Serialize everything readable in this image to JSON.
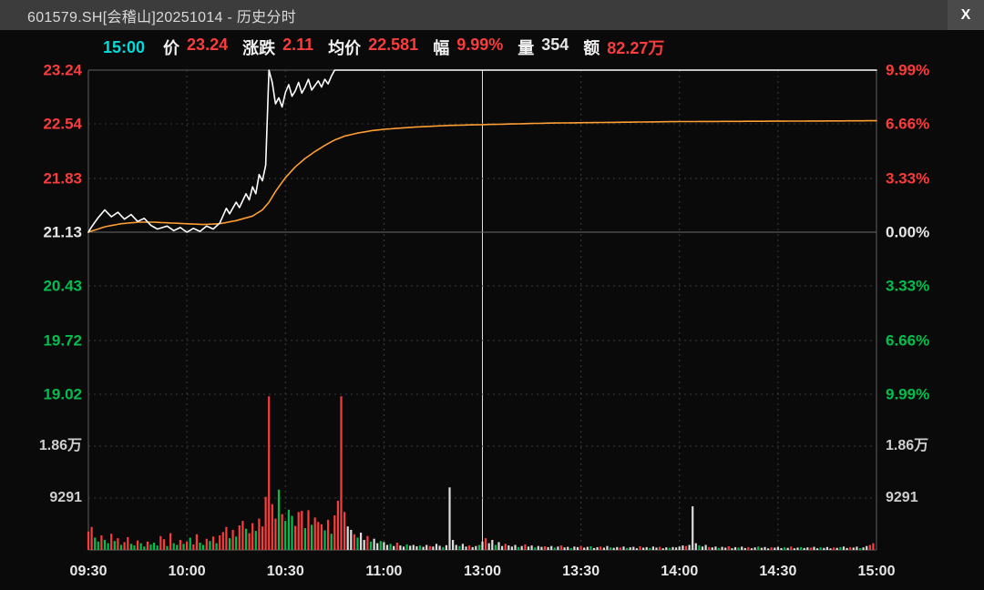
{
  "window": {
    "title": "601579.SH[会稽山]20251014 - 历史分时",
    "close_label": "X"
  },
  "info_bar": {
    "time": "15:00",
    "fields": [
      {
        "key": "price",
        "label": "价",
        "value": "23.24",
        "color": "red"
      },
      {
        "key": "change",
        "label": "涨跌",
        "value": "2.11",
        "color": "red"
      },
      {
        "key": "avg_price",
        "label": "均价",
        "value": "22.581",
        "color": "red"
      },
      {
        "key": "range_pct",
        "label": "幅",
        "value": "9.99%",
        "color": "red"
      },
      {
        "key": "volume",
        "label": "量",
        "value": "354",
        "color": "flat"
      },
      {
        "key": "amount",
        "label": "额",
        "value": "82.27万",
        "color": "red"
      }
    ]
  },
  "colors": {
    "red": "#fa3c3c",
    "green": "#00bf4e",
    "flat": "#e6e6e6",
    "cyan": "#00dcdc",
    "orange": "#ff9e33",
    "white": "#ffffff",
    "vol_white": "#dcdcdc",
    "grid": "#3a3a3a",
    "border": "#606060",
    "divider": "#e0e0e0"
  },
  "axes": {
    "left_price": [
      {
        "text": "23.24",
        "color": "red"
      },
      {
        "text": "22.54",
        "color": "red"
      },
      {
        "text": "21.83",
        "color": "red"
      },
      {
        "text": "21.13",
        "color": "flat"
      },
      {
        "text": "20.43",
        "color": "green"
      },
      {
        "text": "19.72",
        "color": "green"
      },
      {
        "text": "19.02",
        "color": "green"
      }
    ],
    "right_pct": [
      {
        "text": "9.99%",
        "color": "red"
      },
      {
        "text": "6.66%",
        "color": "red"
      },
      {
        "text": "3.33%",
        "color": "red"
      },
      {
        "text": "0.00%",
        "color": "flat"
      },
      {
        "text": "3.33%",
        "color": "green"
      },
      {
        "text": "6.66%",
        "color": "green"
      },
      {
        "text": "9.99%",
        "color": "green"
      }
    ],
    "volume_labels": [
      {
        "text": "1.86万",
        "value": 18582
      },
      {
        "text": "9291",
        "value": 9291
      }
    ],
    "time": [
      "09:30",
      "10:00",
      "10:30",
      "11:00",
      "13:00",
      "13:30",
      "14:00",
      "14:30",
      "15:00"
    ]
  },
  "chart_data": {
    "type": "line",
    "title": "601579.SH[会稽山]20251014 - 历史分时",
    "minutes_total": 240,
    "prev_close": 21.13,
    "limit_up": 23.24,
    "limit_down": 19.02,
    "price_ticks": [
      23.24,
      22.54,
      21.83,
      21.13,
      20.43,
      19.72,
      19.02
    ],
    "pct_ticks": [
      9.99,
      6.66,
      3.33,
      0.0,
      -3.33,
      -6.66,
      -9.99
    ],
    "x_labels": [
      "09:30",
      "10:00",
      "10:30",
      "11:00",
      "13:00",
      "13:30",
      "14:00",
      "14:30",
      "15:00"
    ],
    "summary": {
      "last_price": 23.24,
      "change": 2.11,
      "avg_price": 22.581,
      "change_pct": "9.99%",
      "volume": "354",
      "amount": "82.27万",
      "time": "15:00"
    },
    "series": [
      {
        "name": "price",
        "color_key": "white",
        "anchors": [
          [
            0,
            21.13
          ],
          [
            1,
            21.2
          ],
          [
            3,
            21.32
          ],
          [
            5,
            21.42
          ],
          [
            7,
            21.33
          ],
          [
            9,
            21.39
          ],
          [
            11,
            21.3
          ],
          [
            13,
            21.36
          ],
          [
            15,
            21.27
          ],
          [
            17,
            21.31
          ],
          [
            19,
            21.22
          ],
          [
            21,
            21.17
          ],
          [
            24,
            21.21
          ],
          [
            26,
            21.15
          ],
          [
            28,
            21.19
          ],
          [
            30,
            21.13
          ],
          [
            32,
            21.18
          ],
          [
            34,
            21.14
          ],
          [
            36,
            21.21
          ],
          [
            38,
            21.17
          ],
          [
            40,
            21.25
          ],
          [
            42,
            21.44
          ],
          [
            43,
            21.37
          ],
          [
            45,
            21.52
          ],
          [
            46,
            21.45
          ],
          [
            48,
            21.63
          ],
          [
            49,
            21.55
          ],
          [
            50,
            21.72
          ],
          [
            51,
            21.63
          ],
          [
            52,
            21.88
          ],
          [
            53,
            21.8
          ],
          [
            54,
            22.0
          ],
          [
            55,
            23.24
          ],
          [
            56,
            23.08
          ],
          [
            57,
            22.8
          ],
          [
            58,
            22.88
          ],
          [
            59,
            22.76
          ],
          [
            60,
            22.95
          ],
          [
            61,
            23.05
          ],
          [
            62,
            22.9
          ],
          [
            63,
            22.97
          ],
          [
            64,
            23.08
          ],
          [
            65,
            22.94
          ],
          [
            66,
            23.02
          ],
          [
            67,
            23.12
          ],
          [
            68,
            22.98
          ],
          [
            69,
            23.04
          ],
          [
            70,
            23.1
          ],
          [
            71,
            23.02
          ],
          [
            72,
            23.12
          ],
          [
            73,
            23.06
          ],
          [
            74,
            23.16
          ],
          [
            75,
            23.24
          ],
          [
            240,
            23.24
          ]
        ]
      },
      {
        "name": "avg_price",
        "color_key": "orange",
        "anchors": [
          [
            0,
            21.13
          ],
          [
            5,
            21.2
          ],
          [
            10,
            21.24
          ],
          [
            15,
            21.26
          ],
          [
            20,
            21.26
          ],
          [
            25,
            21.25
          ],
          [
            30,
            21.24
          ],
          [
            35,
            21.23
          ],
          [
            40,
            21.24
          ],
          [
            45,
            21.28
          ],
          [
            50,
            21.34
          ],
          [
            53,
            21.42
          ],
          [
            55,
            21.52
          ],
          [
            57,
            21.66
          ],
          [
            60,
            21.84
          ],
          [
            63,
            21.98
          ],
          [
            66,
            22.09
          ],
          [
            69,
            22.18
          ],
          [
            72,
            22.26
          ],
          [
            75,
            22.33
          ],
          [
            78,
            22.38
          ],
          [
            82,
            22.42
          ],
          [
            86,
            22.45
          ],
          [
            90,
            22.47
          ],
          [
            100,
            22.5
          ],
          [
            110,
            22.52
          ],
          [
            120,
            22.53
          ],
          [
            140,
            22.55
          ],
          [
            160,
            22.56
          ],
          [
            180,
            22.57
          ],
          [
            210,
            22.575
          ],
          [
            240,
            22.581
          ]
        ]
      }
    ],
    "volume": {
      "pane_max": 27873,
      "grid": [
        9291,
        18582
      ],
      "per_minute": [
        3300,
        4100,
        2200,
        1500,
        2600,
        1800,
        1200,
        2900,
        1600,
        2100,
        900,
        1400,
        2300,
        1100,
        800,
        1700,
        1200,
        600,
        1500,
        1000,
        1300,
        800,
        2500,
        1900,
        700,
        3000,
        1200,
        900,
        1800,
        1100,
        1500,
        2200,
        1000,
        2800,
        1300,
        900,
        2000,
        1600,
        2400,
        1200,
        2600,
        3200,
        4100,
        2100,
        3600,
        2400,
        4400,
        5200,
        3800,
        3000,
        4800,
        3400,
        5600,
        4200,
        9500,
        27500,
        8200,
        5600,
        10800,
        6400,
        5200,
        7200,
        6100,
        4300,
        6800,
        7000,
        3900,
        7100,
        4500,
        5800,
        5000,
        4600,
        3500,
        5400,
        2900,
        6200,
        8800,
        27500,
        6800,
        4200,
        3600,
        2800,
        2200,
        3100,
        1800,
        2500,
        1500,
        2000,
        1200,
        1600,
        1400,
        900,
        1100,
        700,
        1300,
        800,
        600,
        1000,
        750,
        900,
        650,
        800,
        550,
        900,
        700,
        600,
        1100,
        750,
        500,
        850,
        11200,
        1800,
        900,
        700,
        1100,
        600,
        800,
        500,
        700,
        900,
        1500,
        2100,
        1200,
        1800,
        900,
        1400,
        700,
        1100,
        800,
        600,
        900,
        500,
        700,
        1000,
        600,
        800,
        450,
        700,
        550,
        650,
        500,
        700,
        400,
        600,
        800,
        450,
        550,
        350,
        600,
        500,
        700,
        400,
        550,
        650,
        350,
        500,
        600,
        400,
        700,
        450,
        380,
        520,
        440,
        600,
        350,
        480,
        560,
        300,
        650,
        400,
        500,
        350,
        600,
        420,
        550,
        300,
        480,
        380,
        520,
        440,
        600,
        800,
        700,
        900,
        7800,
        1200,
        800,
        600,
        900,
        500,
        450,
        600,
        350,
        550,
        400,
        650,
        300,
        500,
        420,
        580,
        350,
        500,
        300,
        450,
        600,
        380,
        520,
        280,
        480,
        400,
        550,
        320,
        460,
        380,
        600,
        300,
        420,
        500,
        350,
        450,
        400,
        550,
        300,
        480,
        360,
        520,
        280,
        440,
        380,
        500,
        600,
        350,
        500,
        420,
        580,
        320,
        460,
        700,
        900,
        1200
      ],
      "colors": [
        "rrggrggrgr",
        "grrggrggrg",
        "ggrrgrggrg",
        "rgrrggrgrg",
        "rrrgrgrrgr",
        "rgrrrrrrgr",
        "gggrrrgrgr",
        "rrgrgrrrrw",
        "wrgwwrgwwg",
        "wwgwrwwgww",
        "wgwwrwwwgw",
        "wwwgwwrwwg",
        "wrwwgwwrww",
        "wgwrwwgwwr",
        "wwgwrwwgww",
        "rwwgwwrwwg",
        "wwrwgwwwrw",
        "wgwwrwwgww",
        "wwrwwwgwwr",
        "wwgwwrwwgw",
        "wrwwgwwwrw",
        "wwgwrwwgww",
        "rwwgwwwrwg",
        "wwrwwgwwrr"
      ]
    }
  }
}
